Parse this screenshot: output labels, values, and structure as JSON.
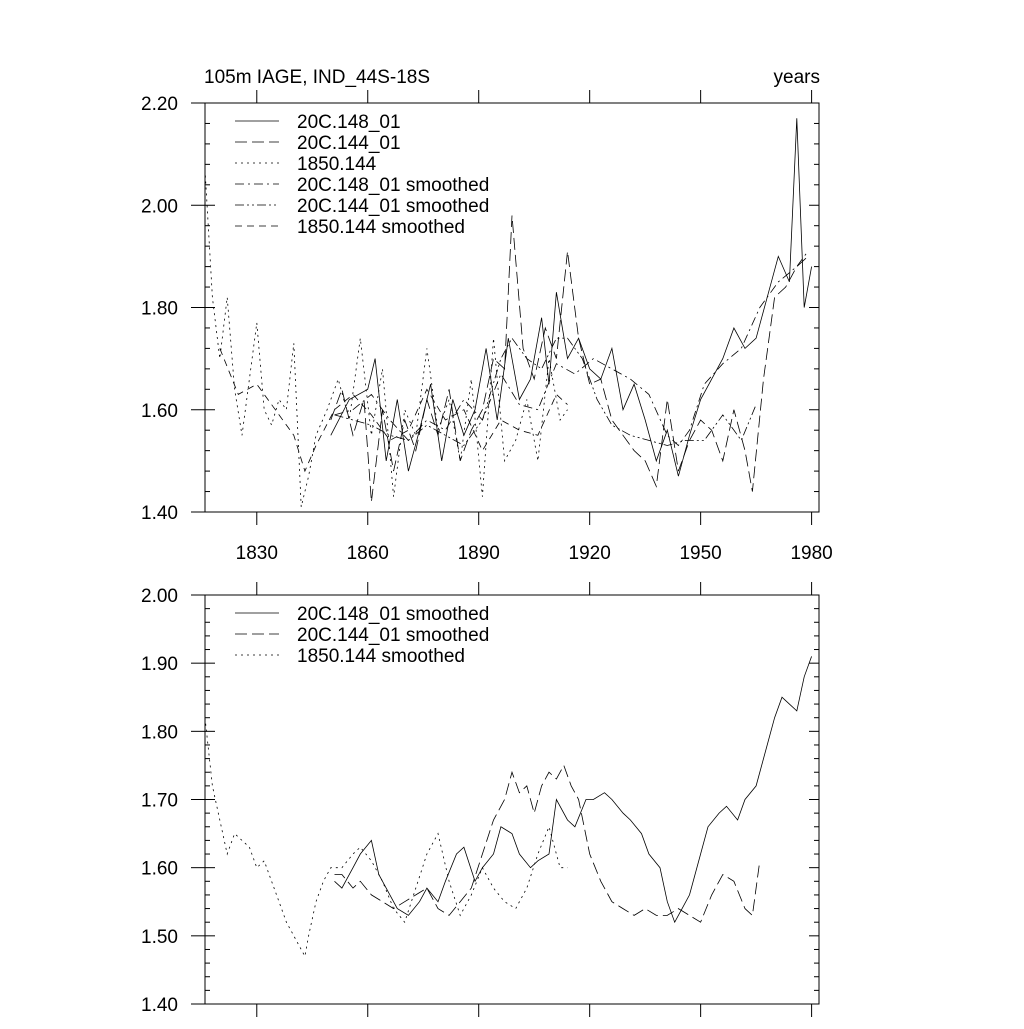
{
  "chart_data": [
    {
      "type": "line",
      "title": "105m IAGE, IND_44S-18S",
      "units": "years",
      "xlim": [
        1816,
        1982
      ],
      "ylim": [
        1.4,
        2.2
      ],
      "yticks": [
        "1.40",
        "1.60",
        "1.80",
        "2.00",
        "2.20"
      ],
      "xticks": [
        1830,
        1860,
        1890,
        1920,
        1950,
        1980
      ],
      "xtick_labels": [
        "1830",
        "1860",
        "1890",
        "1920",
        "1950",
        "1980"
      ],
      "legend": [
        {
          "label": "20C.148_01",
          "dash": "solid"
        },
        {
          "label": "20C.144_01",
          "dash": "long-dash"
        },
        {
          "label": "1850.144",
          "dash": "dot"
        },
        {
          "label": "20C.148_01 smoothed",
          "dash": "dash-dot"
        },
        {
          "label": "20C.144_01 smoothed",
          "dash": "dash-dot-dot"
        },
        {
          "label": "1850.144 smoothed",
          "dash": "dash"
        }
      ],
      "series": [
        {
          "name": "20C.148_01",
          "dash": "solid",
          "x": [
            1850,
            1855,
            1860,
            1862,
            1865,
            1868,
            1871,
            1874,
            1877,
            1880,
            1883,
            1886,
            1889,
            1892,
            1895,
            1898,
            1901,
            1904,
            1907,
            1909,
            1911,
            1914,
            1917,
            1920,
            1923,
            1926,
            1929,
            1932,
            1935,
            1938,
            1941,
            1944,
            1947,
            1950,
            1953,
            1956,
            1959,
            1962,
            1965,
            1968,
            1971,
            1974,
            1976,
            1978,
            1980
          ],
          "y": [
            1.55,
            1.62,
            1.64,
            1.7,
            1.5,
            1.62,
            1.48,
            1.56,
            1.65,
            1.5,
            1.62,
            1.55,
            1.6,
            1.72,
            1.58,
            1.74,
            1.62,
            1.66,
            1.78,
            1.65,
            1.83,
            1.7,
            1.74,
            1.68,
            1.66,
            1.72,
            1.6,
            1.65,
            1.58,
            1.5,
            1.56,
            1.47,
            1.55,
            1.62,
            1.66,
            1.7,
            1.76,
            1.72,
            1.74,
            1.82,
            1.9,
            1.85,
            2.17,
            1.8,
            1.88
          ]
        },
        {
          "name": "20C.144_01",
          "dash": "long-dash",
          "x": [
            1850,
            1853,
            1856,
            1859,
            1861,
            1864,
            1867,
            1870,
            1873,
            1876,
            1879,
            1882,
            1885,
            1888,
            1891,
            1894,
            1897,
            1899,
            1902,
            1905,
            1908,
            1911,
            1914,
            1917,
            1920,
            1923,
            1926,
            1929,
            1932,
            1935,
            1938,
            1941,
            1944,
            1947,
            1950,
            1953,
            1956,
            1959,
            1962,
            1964,
            1967,
            1970,
            1973,
            1976,
            1979
          ],
          "y": [
            1.58,
            1.64,
            1.55,
            1.62,
            1.42,
            1.6,
            1.48,
            1.58,
            1.52,
            1.62,
            1.55,
            1.64,
            1.5,
            1.56,
            1.6,
            1.7,
            1.68,
            1.98,
            1.72,
            1.66,
            1.76,
            1.7,
            1.91,
            1.74,
            1.65,
            1.66,
            1.58,
            1.55,
            1.52,
            1.5,
            1.45,
            1.62,
            1.48,
            1.54,
            1.58,
            1.56,
            1.5,
            1.6,
            1.52,
            1.44,
            1.66,
            1.82,
            1.84,
            1.88,
            1.9
          ]
        },
        {
          "name": "1850.144",
          "dash": "dot",
          "x": [
            1816,
            1818,
            1820,
            1822,
            1824,
            1826,
            1828,
            1830,
            1832,
            1834,
            1836,
            1838,
            1840,
            1842,
            1844,
            1846,
            1849,
            1852,
            1855,
            1858,
            1861,
            1864,
            1867,
            1870,
            1873,
            1876,
            1879,
            1882,
            1885,
            1888,
            1891,
            1894,
            1897,
            1900,
            1903,
            1906,
            1909,
            1912,
            1914
          ],
          "y": [
            2.07,
            1.82,
            1.7,
            1.82,
            1.64,
            1.55,
            1.66,
            1.77,
            1.6,
            1.57,
            1.62,
            1.6,
            1.73,
            1.41,
            1.47,
            1.55,
            1.6,
            1.66,
            1.58,
            1.74,
            1.55,
            1.68,
            1.43,
            1.6,
            1.55,
            1.72,
            1.56,
            1.62,
            1.5,
            1.66,
            1.43,
            1.74,
            1.5,
            1.54,
            1.62,
            1.5,
            1.7,
            1.58,
            1.6
          ]
        },
        {
          "name": "20C.148_01 smoothed",
          "dash": "dash-dot",
          "x": [
            1851,
            1856,
            1861,
            1866,
            1871,
            1876,
            1881,
            1886,
            1891,
            1896,
            1901,
            1906,
            1911,
            1916,
            1921,
            1926,
            1931,
            1936,
            1941,
            1944,
            1947,
            1951,
            1956,
            1961,
            1966,
            1971,
            1976,
            1979
          ],
          "y": [
            1.59,
            1.6,
            1.63,
            1.58,
            1.54,
            1.58,
            1.56,
            1.62,
            1.58,
            1.67,
            1.61,
            1.6,
            1.69,
            1.67,
            1.7,
            1.68,
            1.66,
            1.63,
            1.55,
            1.53,
            1.56,
            1.65,
            1.69,
            1.72,
            1.8,
            1.85,
            1.88,
            1.91
          ]
        },
        {
          "name": "20C.144_01 smoothed",
          "dash": "dash-dot-dot",
          "x": [
            1851,
            1856,
            1861,
            1866,
            1871,
            1876,
            1881,
            1886,
            1891,
            1896,
            1899,
            1903,
            1907,
            1911,
            1914,
            1918,
            1922,
            1926,
            1931,
            1936,
            1941,
            1946,
            1951,
            1956,
            1961,
            1965
          ],
          "y": [
            1.59,
            1.58,
            1.57,
            1.55,
            1.54,
            1.57,
            1.55,
            1.53,
            1.58,
            1.7,
            1.74,
            1.7,
            1.68,
            1.74,
            1.74,
            1.7,
            1.62,
            1.57,
            1.55,
            1.54,
            1.53,
            1.54,
            1.54,
            1.59,
            1.54,
            1.61
          ]
        },
        {
          "name": "1850.144 smoothed",
          "dash": "dash",
          "x": [
            1820,
            1825,
            1830,
            1835,
            1840,
            1843,
            1846,
            1851,
            1856,
            1861,
            1866,
            1871,
            1876,
            1881,
            1886,
            1891,
            1896,
            1901,
            1906,
            1911,
            1914
          ],
          "y": [
            1.72,
            1.63,
            1.65,
            1.6,
            1.55,
            1.48,
            1.53,
            1.6,
            1.63,
            1.59,
            1.54,
            1.56,
            1.64,
            1.58,
            1.6,
            1.52,
            1.58,
            1.56,
            1.55,
            1.63,
            1.61
          ]
        }
      ]
    },
    {
      "type": "line",
      "title": "",
      "xlim": [
        1816,
        1982
      ],
      "ylim": [
        1.4,
        2.0
      ],
      "yticks": [
        "1.40",
        "1.50",
        "1.60",
        "1.70",
        "1.80",
        "1.90",
        "2.00"
      ],
      "xticks": [
        1830,
        1860,
        1890,
        1920,
        1950,
        1980
      ],
      "legend": [
        {
          "label": "20C.148_01 smoothed",
          "dash": "solid"
        },
        {
          "label": "20C.144_01 smoothed",
          "dash": "long-dash"
        },
        {
          "label": "1850.144 smoothed",
          "dash": "dot"
        }
      ],
      "series": [
        {
          "name": "20C.148_01 smoothed",
          "dash": "solid",
          "x": [
            1851,
            1853,
            1856,
            1858,
            1861,
            1863,
            1866,
            1868,
            1871,
            1874,
            1876,
            1879,
            1881,
            1884,
            1886,
            1889,
            1891,
            1894,
            1896,
            1899,
            1901,
            1904,
            1906,
            1909,
            1911,
            1914,
            1916,
            1919,
            1921,
            1924,
            1926,
            1929,
            1931,
            1934,
            1936,
            1939,
            1941,
            1943,
            1945,
            1947,
            1950,
            1952,
            1955,
            1957,
            1960,
            1962,
            1965,
            1968,
            1970,
            1972,
            1974,
            1976,
            1978,
            1980
          ],
          "y": [
            1.58,
            1.57,
            1.6,
            1.62,
            1.64,
            1.59,
            1.56,
            1.54,
            1.53,
            1.55,
            1.57,
            1.55,
            1.58,
            1.62,
            1.63,
            1.58,
            1.6,
            1.62,
            1.66,
            1.65,
            1.62,
            1.6,
            1.61,
            1.62,
            1.7,
            1.67,
            1.66,
            1.7,
            1.7,
            1.71,
            1.7,
            1.68,
            1.67,
            1.65,
            1.62,
            1.6,
            1.55,
            1.52,
            1.54,
            1.56,
            1.62,
            1.66,
            1.68,
            1.69,
            1.67,
            1.7,
            1.72,
            1.78,
            1.82,
            1.85,
            1.84,
            1.83,
            1.88,
            1.91
          ]
        },
        {
          "name": "20C.144_01 smoothed",
          "dash": "long-dash",
          "x": [
            1851,
            1853,
            1856,
            1858,
            1861,
            1864,
            1867,
            1870,
            1873,
            1876,
            1879,
            1882,
            1885,
            1888,
            1891,
            1894,
            1897,
            1899,
            1901,
            1903,
            1905,
            1907,
            1909,
            1911,
            1913,
            1915,
            1917,
            1920,
            1923,
            1926,
            1929,
            1932,
            1935,
            1938,
            1941,
            1944,
            1947,
            1950,
            1953,
            1956,
            1959,
            1962,
            1964,
            1966
          ],
          "y": [
            1.59,
            1.59,
            1.57,
            1.58,
            1.56,
            1.55,
            1.54,
            1.55,
            1.56,
            1.57,
            1.54,
            1.53,
            1.55,
            1.57,
            1.62,
            1.67,
            1.7,
            1.74,
            1.71,
            1.72,
            1.68,
            1.72,
            1.74,
            1.73,
            1.75,
            1.72,
            1.7,
            1.62,
            1.58,
            1.55,
            1.54,
            1.53,
            1.54,
            1.53,
            1.53,
            1.54,
            1.53,
            1.52,
            1.56,
            1.59,
            1.58,
            1.54,
            1.53,
            1.61
          ]
        },
        {
          "name": "1850.144 smoothed",
          "dash": "dot",
          "x": [
            1816,
            1818,
            1820,
            1822,
            1824,
            1826,
            1828,
            1830,
            1832,
            1834,
            1836,
            1838,
            1840,
            1842,
            1843,
            1844,
            1846,
            1848,
            1850,
            1853,
            1856,
            1858,
            1861,
            1864,
            1867,
            1870,
            1873,
            1876,
            1879,
            1882,
            1885,
            1888,
            1891,
            1894,
            1897,
            1900,
            1903,
            1906,
            1909,
            1912,
            1914
          ],
          "y": [
            1.82,
            1.72,
            1.67,
            1.62,
            1.65,
            1.64,
            1.63,
            1.6,
            1.61,
            1.58,
            1.55,
            1.52,
            1.5,
            1.48,
            1.47,
            1.5,
            1.55,
            1.58,
            1.6,
            1.6,
            1.62,
            1.63,
            1.61,
            1.58,
            1.54,
            1.52,
            1.57,
            1.62,
            1.65,
            1.58,
            1.53,
            1.56,
            1.6,
            1.57,
            1.55,
            1.54,
            1.57,
            1.62,
            1.66,
            1.6,
            1.6
          ]
        }
      ]
    }
  ]
}
